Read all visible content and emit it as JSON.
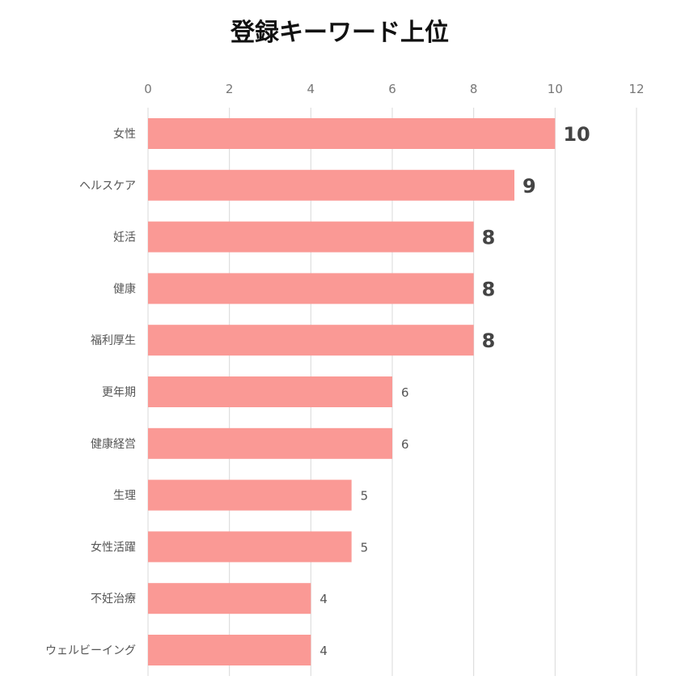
{
  "chart_data": {
    "type": "bar",
    "orientation": "horizontal",
    "title": "登録キーワード上位",
    "categories": [
      "女性",
      "ヘルスケア",
      "妊活",
      "健康",
      "福利厚生",
      "更年期",
      "健康経営",
      "生理",
      "女性活躍",
      "不妊治療",
      "ウェルビーイング"
    ],
    "values": [
      10,
      9,
      8,
      8,
      8,
      6,
      6,
      5,
      5,
      4,
      4
    ],
    "xlim": [
      0,
      12
    ],
    "x_ticks": [
      0,
      2,
      4,
      6,
      8,
      10,
      12
    ],
    "x_axis_position": "top",
    "grid": true,
    "bar_color": "#fa9995",
    "grid_color": "#d9d9d9"
  }
}
